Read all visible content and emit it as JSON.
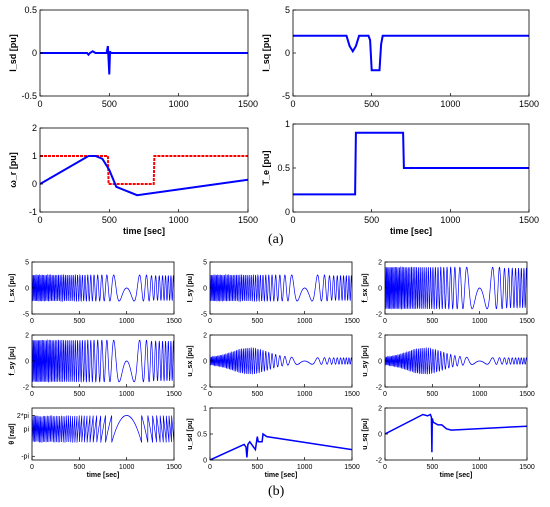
{
  "captions": {
    "a": "(a)",
    "b": "(b)"
  },
  "colors": {
    "series_primary": "#0000ff",
    "series_reference": "#ff0000",
    "axis": "#000000"
  },
  "chart_data": [
    {
      "id": "a1",
      "type": "line",
      "ylabel": "I_sd [pu]",
      "xlabel": "",
      "grid": false,
      "xlim": [
        0,
        1500
      ],
      "ylim": [
        -0.5,
        0.5
      ],
      "xticks": [
        "0",
        "500",
        "1000",
        "1500"
      ],
      "yticks": [
        "-0.5",
        "0",
        "0.5"
      ],
      "series": [
        {
          "color": "#0000ff",
          "x": [
            0,
            340,
            350,
            360,
            380,
            400,
            480,
            490,
            500,
            505,
            510,
            520,
            1500
          ],
          "y": [
            0,
            0,
            -0.02,
            0,
            0.02,
            0,
            0,
            0.08,
            -0.25,
            0.02,
            0,
            0,
            0
          ]
        }
      ]
    },
    {
      "id": "a2",
      "type": "line",
      "ylabel": "I_sq [pu]",
      "xlabel": "",
      "grid": false,
      "xlim": [
        0,
        1500
      ],
      "ylim": [
        -5,
        5
      ],
      "xticks": [
        "0",
        "500",
        "1000",
        "1500"
      ],
      "yticks": [
        "-5",
        "0",
        "5"
      ],
      "series": [
        {
          "color": "#0000ff",
          "x": [
            0,
            340,
            360,
            380,
            400,
            420,
            480,
            490,
            500,
            550,
            560,
            570,
            1500
          ],
          "y": [
            2,
            2,
            0.8,
            0.2,
            0.8,
            2,
            2,
            1.5,
            -2,
            -2,
            1,
            2,
            2
          ]
        }
      ]
    },
    {
      "id": "a3",
      "type": "line",
      "ylabel": "ω_r [pu]",
      "xlabel": "time [sec]",
      "grid": false,
      "xlim": [
        0,
        1500
      ],
      "ylim": [
        -1,
        2
      ],
      "xticks": [
        "0",
        "500",
        "1000",
        "1500"
      ],
      "yticks": [
        "-1",
        "0",
        "1",
        "2"
      ],
      "series": [
        {
          "color": "#ff0000",
          "x": [
            0,
            490,
            495,
            820,
            825,
            1500
          ],
          "y": [
            1,
            1,
            0,
            0,
            1,
            1
          ]
        },
        {
          "color": "#0000ff",
          "x": [
            0,
            350,
            400,
            450,
            500,
            550,
            700,
            1500
          ],
          "y": [
            0,
            1,
            1,
            0.9,
            0.5,
            -0.1,
            -0.4,
            0.15
          ]
        }
      ]
    },
    {
      "id": "a4",
      "type": "line",
      "ylabel": "T_e [pu]",
      "xlabel": "time [sec]",
      "grid": false,
      "xlim": [
        0,
        1500
      ],
      "ylim": [
        0,
        1
      ],
      "xticks": [
        "0",
        "500",
        "1000",
        "1500"
      ],
      "yticks": [
        "0",
        "0.5",
        "1"
      ],
      "series": [
        {
          "color": "#0000ff",
          "x": [
            0,
            395,
            400,
            700,
            705,
            1500
          ],
          "y": [
            0.2,
            0.2,
            0.9,
            0.9,
            0.5,
            0.5
          ]
        }
      ]
    },
    {
      "id": "b1",
      "type": "line",
      "ylabel": "I_sx [pu]",
      "xlabel": "",
      "grid": false,
      "xlim": [
        0,
        1500
      ],
      "ylim": [
        -5,
        5
      ],
      "xticks": [
        "0",
        "500",
        "1000",
        "1500"
      ],
      "yticks": [
        "-5",
        "0",
        "5"
      ],
      "series": [
        {
          "color": "#0000ff",
          "style": "oscillation",
          "amp": 2.5,
          "offset": 0,
          "env": "flat"
        }
      ]
    },
    {
      "id": "b2",
      "type": "line",
      "ylabel": "I_sy [pu]",
      "xlabel": "",
      "grid": false,
      "xlim": [
        0,
        1500
      ],
      "ylim": [
        -5,
        5
      ],
      "xticks": [
        "0",
        "500",
        "1000",
        "1500"
      ],
      "yticks": [
        "-5",
        "0",
        "5"
      ],
      "series": [
        {
          "color": "#0000ff",
          "style": "oscillation",
          "amp": 2.5,
          "offset": 0,
          "env": "flat"
        }
      ]
    },
    {
      "id": "b3",
      "type": "line",
      "ylabel": "f_sx [pu]",
      "xlabel": "",
      "grid": false,
      "xlim": [
        0,
        1500
      ],
      "ylim": [
        -2,
        2
      ],
      "xticks": [
        "0",
        "500",
        "1000",
        "1500"
      ],
      "yticks": [
        "-2",
        "0",
        "2"
      ],
      "series": [
        {
          "color": "#0000ff",
          "style": "oscillation",
          "amp": 1.6,
          "offset": 0,
          "env": "flat"
        }
      ]
    },
    {
      "id": "b4",
      "type": "line",
      "ylabel": "f_sy [pu]",
      "xlabel": "",
      "grid": false,
      "xlim": [
        0,
        1500
      ],
      "ylim": [
        -2,
        2
      ],
      "xticks": [
        "0",
        "500",
        "1000",
        "1500"
      ],
      "yticks": [
        "-2",
        "0",
        "2"
      ],
      "series": [
        {
          "color": "#0000ff",
          "style": "oscillation",
          "amp": 1.6,
          "offset": 0,
          "env": "flat"
        }
      ]
    },
    {
      "id": "b5",
      "type": "line",
      "ylabel": "u_sx [pu]",
      "xlabel": "",
      "grid": false,
      "xlim": [
        0,
        1500
      ],
      "ylim": [
        -2,
        2
      ],
      "xticks": [
        "0",
        "500",
        "1000",
        "1500"
      ],
      "yticks": [
        "-2",
        "0",
        "2"
      ],
      "series": [
        {
          "color": "#0000ff",
          "style": "oscillation",
          "amp": 1.0,
          "offset": 0,
          "env": "decay"
        }
      ]
    },
    {
      "id": "b6",
      "type": "line",
      "ylabel": "u_sy [pu]",
      "xlabel": "",
      "grid": false,
      "xlim": [
        0,
        1500
      ],
      "ylim": [
        -2,
        2
      ],
      "xticks": [
        "0",
        "500",
        "1000",
        "1500"
      ],
      "yticks": [
        "-2",
        "0",
        "2"
      ],
      "series": [
        {
          "color": "#0000ff",
          "style": "oscillation",
          "amp": 1.0,
          "offset": 0,
          "env": "decay"
        }
      ]
    },
    {
      "id": "b7",
      "type": "line",
      "ylabel": "θ [rad]",
      "xlabel": "time [sec]",
      "grid": false,
      "xlim": [
        0,
        1500
      ],
      "ylim": [
        -4,
        8
      ],
      "xticks": [
        "0",
        "500",
        "1000",
        "1500"
      ],
      "yticks": [
        "-pi",
        "pi",
        "2*pi"
      ],
      "ytick_values": [
        -3.1416,
        3.1416,
        6.2832
      ],
      "series": [
        {
          "color": "#0000ff",
          "style": "sawtooth",
          "amp": 3.14,
          "offset": 3.14,
          "env": "flat"
        }
      ]
    },
    {
      "id": "b8",
      "type": "line",
      "ylabel": "u_sd [pu]",
      "xlabel": "time [sec]",
      "grid": false,
      "xlim": [
        0,
        1500
      ],
      "ylim": [
        0,
        1
      ],
      "xticks": [
        "0",
        "500",
        "1000",
        "1500"
      ],
      "yticks": [
        "0",
        "0.5",
        "1"
      ],
      "series": [
        {
          "color": "#0000ff",
          "x": [
            0,
            360,
            380,
            390,
            400,
            420,
            480,
            500,
            510,
            550,
            560,
            600,
            1500
          ],
          "y": [
            0,
            0.3,
            0.25,
            0.05,
            0.3,
            0.35,
            0.2,
            0.45,
            0.35,
            0.35,
            0.5,
            0.45,
            0.2
          ]
        }
      ]
    },
    {
      "id": "b9",
      "type": "line",
      "ylabel": "u_sq [pu]",
      "xlabel": "time [sec]",
      "grid": false,
      "xlim": [
        0,
        1500
      ],
      "ylim": [
        -2,
        2
      ],
      "xticks": [
        "0",
        "500",
        "1000",
        "1500"
      ],
      "yticks": [
        "-2",
        "0",
        "2"
      ],
      "series": [
        {
          "color": "#0000ff",
          "x": [
            0,
            400,
            450,
            480,
            490,
            495,
            500,
            510,
            560,
            600,
            650,
            700,
            1500
          ],
          "y": [
            0,
            1.5,
            1.4,
            1.5,
            1.3,
            -1.4,
            1.2,
            0.9,
            0.7,
            0.7,
            0.4,
            0.3,
            0.6
          ]
        }
      ]
    }
  ]
}
